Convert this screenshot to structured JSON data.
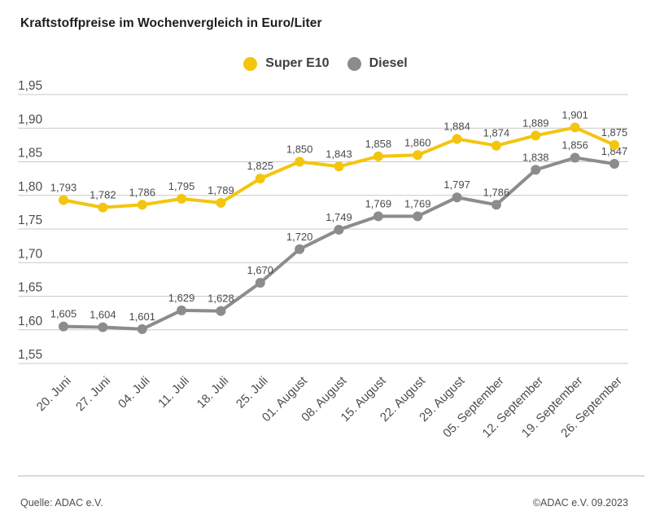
{
  "title": "Kraftstoffpreise im Wochenvergleich in Euro/Liter",
  "legend": [
    {
      "label": "Super E10",
      "color": "#F3C50E"
    },
    {
      "label": "Diesel",
      "color": "#8C8C8C"
    }
  ],
  "footer": {
    "source": "Quelle: ADAC e.V.",
    "copyright": "©ADAC e.V. 09.2023"
  },
  "colors": {
    "super_e10": "#F3C50E",
    "diesel": "#8C8C8C",
    "gridline": "#c9c9c9",
    "axis_text": "#4d4d4d",
    "point_label": "#4a4a4a"
  },
  "chart_data": {
    "type": "line",
    "title": "Kraftstoffpreise im Wochenvergleich in Euro/Liter",
    "xlabel": "",
    "ylabel": "Euro/Liter",
    "categories": [
      "20. Juni",
      "27. Juni",
      "04. Juli",
      "11. Juli",
      "18. Juli",
      "25. Juli",
      "01. August",
      "08. August",
      "15. August",
      "22. August",
      "29. August",
      "05. September",
      "12. September",
      "19. September",
      "26. September"
    ],
    "series": [
      {
        "name": "Super E10",
        "color": "#F3C50E",
        "values": [
          1.793,
          1.782,
          1.786,
          1.795,
          1.789,
          1.825,
          1.85,
          1.843,
          1.858,
          1.86,
          1.884,
          1.874,
          1.889,
          1.901,
          1.875
        ]
      },
      {
        "name": "Diesel",
        "color": "#8C8C8C",
        "values": [
          1.605,
          1.604,
          1.601,
          1.629,
          1.628,
          1.67,
          1.72,
          1.749,
          1.769,
          1.769,
          1.797,
          1.786,
          1.838,
          1.856,
          1.847
        ]
      }
    ],
    "ylim": [
      1.55,
      1.95
    ],
    "y_tick_step": 0.05,
    "y_tick_labels": [
      "1,95",
      "1,90",
      "1,85",
      "1,80",
      "1,75",
      "1,70",
      "1,65",
      "1,60",
      "1,55"
    ],
    "grid": true,
    "legend_position": "top-center",
    "point_labels_visible": true,
    "number_format": "german-comma-3-decimals"
  }
}
